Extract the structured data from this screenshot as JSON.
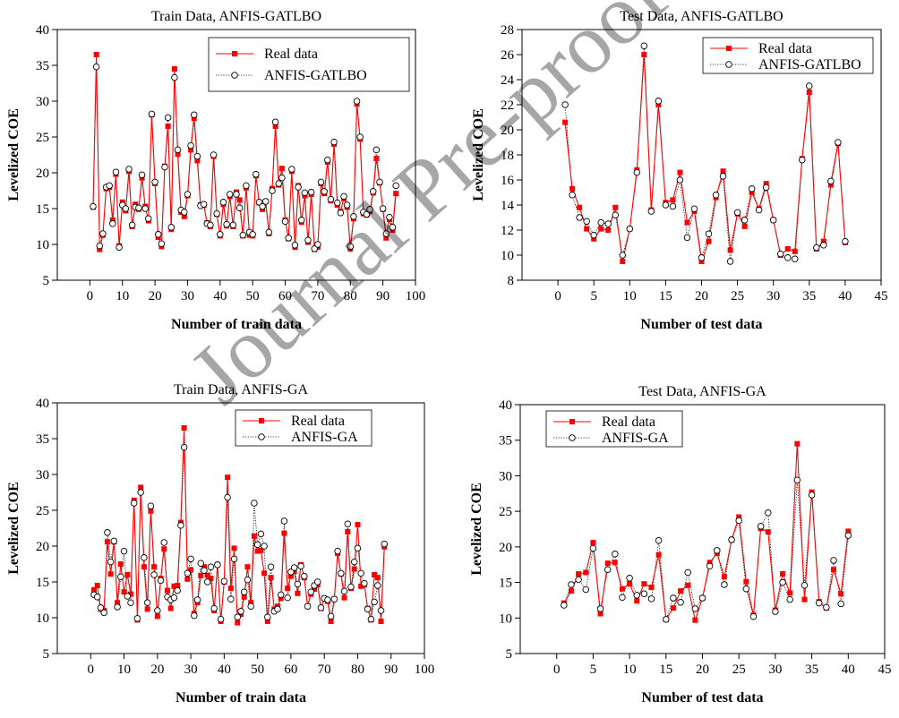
{
  "watermark": "Journal Pre-proof",
  "colors": {
    "real": "#ff0000",
    "model": "#000000"
  },
  "chart_data": [
    {
      "type": "line",
      "title": "Train Data, ANFIS-GATLBO",
      "xlabel": "Number of train data",
      "ylabel": "Levelized COE",
      "xlim": [
        -10,
        100
      ],
      "ylim": [
        5,
        40
      ],
      "xticks": [
        0,
        10,
        20,
        30,
        40,
        50,
        60,
        70,
        80,
        90,
        100
      ],
      "yticks": [
        5,
        10,
        15,
        20,
        25,
        30,
        35,
        40
      ],
      "legend_position": "top-right",
      "series": [
        {
          "name": "Real data",
          "y": [
            15.2,
            36.5,
            9.3,
            11.3,
            17.8,
            18.0,
            13.4,
            19.8,
            9.8,
            15.9,
            14.7,
            20.2,
            12.5,
            15.6,
            14.9,
            19.3,
            15.3,
            13.3,
            28.1,
            18.5,
            11.0,
            9.7,
            20.9,
            26.5,
            12.1,
            34.5,
            22.6,
            14.5,
            13.9,
            16.8,
            23.2,
            27.6,
            21.7,
            15.5,
            15.5,
            13.0,
            12.5,
            22.3,
            14.2,
            11.2,
            15.6,
            12.6,
            16.7,
            12.5,
            17.3,
            16.2,
            11.2,
            17.9,
            11.3,
            11.2,
            19.6,
            15.8,
            14.9,
            16.0,
            11.5,
            17.8,
            26.5,
            18.3,
            20.6,
            13.4,
            10.8,
            20.2,
            9.6,
            18.2,
            13.1,
            16.8,
            10.3,
            17.0,
            9.3,
            9.6,
            18.5,
            17.1,
            21.5,
            16.1,
            24.0,
            15.5,
            14.6,
            16.4,
            15.2,
            9.4,
            13.6,
            29.6,
            24.7,
            14.3,
            14.1,
            14.6,
            17.2,
            22.0,
            18.6,
            14.9,
            10.9,
            13.5,
            12.0,
            17.1
          ],
          "color": "#ff0000"
        },
        {
          "name": "ANFIS-GATLBO",
          "y": [
            15.3,
            34.8,
            9.8,
            11.5,
            18.0,
            18.2,
            12.9,
            20.1,
            9.6,
            15.5,
            15.0,
            20.5,
            12.7,
            15.2,
            15.1,
            19.7,
            15.0,
            13.6,
            28.2,
            18.7,
            11.4,
            10.1,
            20.8,
            27.7,
            12.4,
            33.3,
            23.2,
            14.8,
            14.5,
            17.0,
            23.8,
            28.1,
            22.3,
            15.4,
            15.6,
            12.9,
            12.7,
            22.5,
            14.3,
            11.4,
            15.9,
            12.8,
            17.0,
            12.7,
            17.0,
            15.1,
            11.3,
            18.2,
            11.7,
            11.4,
            19.8,
            15.9,
            15.3,
            16.0,
            11.7,
            17.5,
            27.1,
            18.5,
            19.3,
            13.2,
            10.9,
            20.5,
            9.9,
            18.0,
            13.4,
            17.2,
            10.6,
            17.3,
            9.4,
            10.0,
            18.7,
            17.4,
            21.8,
            16.3,
            24.3,
            15.8,
            14.4,
            16.7,
            15.5,
            9.7,
            13.9,
            30.0,
            25.0,
            14.5,
            14.2,
            14.9,
            17.4,
            23.2,
            18.7,
            15.0,
            11.5,
            13.8,
            12.4,
            18.2
          ],
          "color": "#000000"
        }
      ]
    },
    {
      "type": "line",
      "title": "Test Data, ANFIS-GATLBO",
      "xlabel": "Number of test data",
      "ylabel": "Levelized COE",
      "xlim": [
        -5,
        45
      ],
      "ylim": [
        8,
        28
      ],
      "xticks": [
        0,
        5,
        10,
        15,
        20,
        25,
        30,
        35,
        40,
        45
      ],
      "yticks": [
        8,
        10,
        12,
        14,
        16,
        18,
        20,
        22,
        24,
        26,
        28
      ],
      "legend_position": "top-right",
      "series": [
        {
          "name": "Real data",
          "y": [
            20.6,
            15.3,
            13.8,
            12.1,
            11.3,
            12.1,
            12.0,
            13.8,
            9.5,
            12.1,
            16.8,
            26.0,
            13.6,
            22.0,
            14.2,
            14.4,
            16.6,
            12.6,
            13.5,
            9.5,
            11.1,
            14.6,
            16.7,
            10.4,
            13.3,
            12.3,
            15.0,
            13.7,
            15.7,
            12.8,
            10.0,
            10.5,
            10.3,
            17.7,
            23.0,
            10.5,
            11.1,
            15.6,
            18.9,
            11.0
          ],
          "color": "#ff0000"
        },
        {
          "name": "ANFIS-GATLBO",
          "y": [
            22.0,
            14.8,
            13.0,
            12.7,
            11.6,
            12.6,
            12.5,
            13.2,
            10.0,
            12.1,
            16.6,
            26.7,
            13.5,
            22.3,
            14.0,
            13.9,
            16.0,
            11.4,
            13.7,
            9.8,
            11.7,
            14.8,
            16.3,
            9.5,
            13.4,
            12.8,
            15.3,
            13.6,
            15.4,
            12.8,
            10.1,
            9.8,
            9.7,
            17.6,
            23.5,
            10.6,
            10.8,
            15.9,
            19.0,
            11.1
          ],
          "color": "#000000"
        }
      ]
    },
    {
      "type": "line",
      "title": "Train Data, ANFIS-GA",
      "xlabel": "Number of train data",
      "ylabel": "Levelized COE",
      "xlim": [
        -10,
        100
      ],
      "ylim": [
        5,
        40
      ],
      "xticks": [
        0,
        10,
        20,
        30,
        40,
        50,
        60,
        70,
        80,
        90,
        100
      ],
      "yticks": [
        5,
        10,
        15,
        20,
        25,
        30,
        35,
        40
      ],
      "legend_position": "top-right",
      "series": [
        {
          "name": "Real data",
          "y": [
            13.9,
            14.5,
            11.2,
            11.0,
            20.6,
            16.1,
            20.6,
            12.1,
            17.5,
            13.6,
            16.0,
            13.3,
            26.4,
            9.7,
            28.2,
            17.1,
            11.2,
            24.9,
            17.1,
            10.2,
            15.5,
            19.6,
            13.8,
            11.3,
            14.4,
            14.5,
            23.3,
            36.5,
            15.4,
            16.7,
            10.6,
            12.1,
            15.9,
            17.1,
            15.9,
            15.5,
            11.0,
            17.4,
            9.5,
            15.0,
            29.6,
            14.1,
            19.7,
            9.3,
            10.5,
            12.9,
            17.1,
            12.1,
            21.4,
            19.3,
            19.4,
            16.2,
            9.5,
            15.6,
            11.2,
            11.6,
            12.7,
            21.8,
            14.1,
            15.8,
            16.5,
            13.4,
            17.4,
            15.6,
            11.6,
            13.3,
            14.0,
            14.6,
            11.3,
            12.7,
            12.3,
            9.5,
            12.6,
            19.0,
            16.1,
            12.8,
            22.0,
            14.1,
            16.8,
            23.0,
            14.4,
            14.6,
            11.3,
            9.7,
            16.0,
            15.6,
            9.5,
            19.9
          ],
          "color": "#ff0000"
        },
        {
          "name": "ANFIS-GA",
          "y": [
            13.2,
            12.9,
            11.4,
            10.7,
            21.9,
            17.8,
            20.7,
            11.5,
            15.7,
            19.3,
            13.0,
            12.1,
            26.0,
            9.9,
            27.5,
            18.4,
            12.1,
            25.6,
            16.0,
            11.0,
            15.2,
            20.5,
            12.9,
            12.5,
            12.8,
            13.8,
            22.9,
            33.8,
            16.2,
            18.2,
            10.3,
            12.5,
            17.6,
            16.6,
            15.0,
            17.1,
            11.3,
            17.4,
            9.8,
            15.1,
            26.8,
            12.6,
            18.2,
            10.1,
            10.9,
            13.6,
            15.3,
            11.6,
            26.0,
            20.2,
            21.7,
            20.0,
            10.1,
            17.1,
            10.9,
            11.2,
            13.2,
            23.5,
            12.8,
            16.4,
            17.0,
            14.7,
            17.2,
            15.8,
            11.6,
            13.6,
            14.5,
            15.0,
            11.4,
            12.7,
            12.5,
            10.2,
            12.6,
            19.3,
            16.2,
            13.7,
            23.1,
            14.3,
            17.8,
            19.7,
            16.2,
            14.8,
            11.2,
            9.8,
            12.2,
            14.5,
            11.0,
            20.3
          ],
          "color": "#000000"
        }
      ]
    },
    {
      "type": "line",
      "title": "Test Data, ANFIS-GA",
      "xlabel": "Number of test data",
      "ylabel": "Levelized COE",
      "xlim": [
        -5,
        45
      ],
      "ylim": [
        5,
        40
      ],
      "xticks": [
        0,
        5,
        10,
        15,
        20,
        25,
        30,
        35,
        40,
        45
      ],
      "yticks": [
        5,
        10,
        15,
        20,
        25,
        30,
        35,
        40
      ],
      "legend_position": "top-left",
      "series": [
        {
          "name": "Real data",
          "y": [
            12.1,
            13.8,
            16.2,
            16.4,
            20.6,
            10.6,
            17.7,
            17.8,
            14.1,
            14.8,
            12.4,
            14.8,
            14.3,
            18.9,
            9.8,
            11.4,
            13.8,
            14.6,
            9.7,
            12.8,
            17.8,
            19.1,
            15.8,
            21.0,
            24.2,
            15.1,
            10.4,
            22.6,
            22.1,
            11.1,
            16.2,
            13.5,
            34.5,
            12.6,
            27.7,
            12.3,
            11.4,
            16.8,
            13.4,
            22.2
          ],
          "color": "#ff0000"
        },
        {
          "name": "ANFIS-GA",
          "y": [
            11.8,
            14.7,
            15.4,
            14.0,
            19.8,
            11.3,
            16.8,
            19.0,
            12.9,
            15.6,
            13.2,
            13.4,
            12.7,
            20.9,
            9.8,
            12.8,
            12.2,
            16.4,
            11.3,
            12.8,
            17.3,
            19.5,
            14.7,
            21.0,
            23.7,
            14.1,
            10.2,
            22.9,
            24.8,
            10.9,
            15.0,
            12.6,
            29.4,
            14.6,
            27.3,
            12.1,
            11.5,
            18.1,
            12.0,
            21.6
          ],
          "color": "#000000"
        }
      ]
    }
  ]
}
